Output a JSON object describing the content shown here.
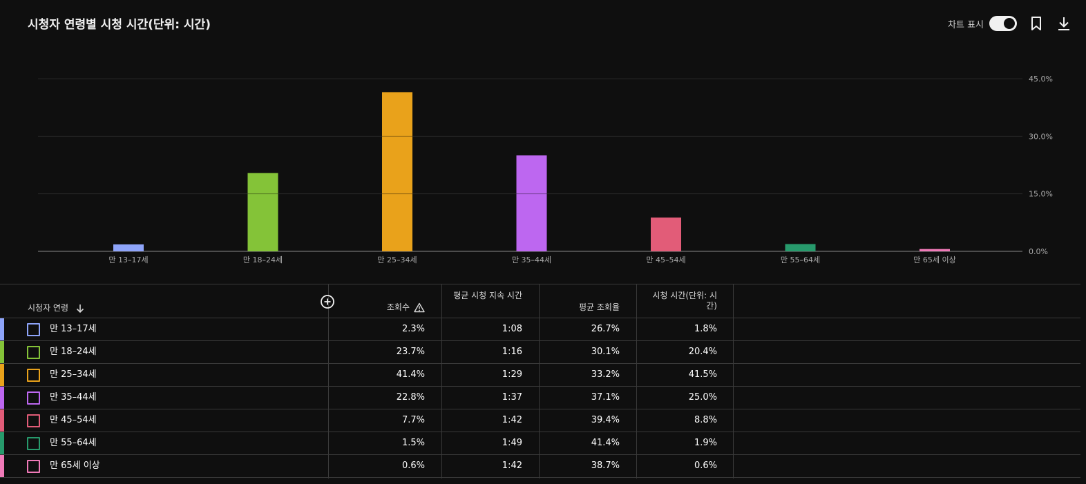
{
  "header": {
    "title": "시청자 연령별 시청 시간(단위: 시간)",
    "toggle_label": "차트 표시",
    "toggle_on": true
  },
  "chart_data": {
    "type": "bar",
    "categories": [
      "만 13–17세",
      "만 18–24세",
      "만 25–34세",
      "만 35–44세",
      "만 45–54세",
      "만 55–64세",
      "만 65세 이상"
    ],
    "values": [
      1.8,
      20.4,
      41.5,
      25.0,
      8.8,
      1.9,
      0.6
    ],
    "colors": [
      "#8ea4f9",
      "#84c338",
      "#e9a21b",
      "#bd67f0",
      "#e25c78",
      "#279a6c",
      "#f07ab8"
    ],
    "yticks": [
      "0.0%",
      "15.0%",
      "30.0%",
      "45.0%"
    ],
    "ylim": [
      0,
      45
    ],
    "grid": true
  },
  "table": {
    "columns": {
      "dimension": "시청자 연령",
      "views": "조회수",
      "avg_duration": "평균 시청 지속 시간",
      "avg_percent": "평균 조회율",
      "watch_time": "시청 시간(단위: 시간)"
    },
    "rows": [
      {
        "label": "만 13–17세",
        "views": "2.3%",
        "avg_duration": "1:08",
        "avg_percent": "26.7%",
        "watch_time": "1.8%"
      },
      {
        "label": "만 18–24세",
        "views": "23.7%",
        "avg_duration": "1:16",
        "avg_percent": "30.1%",
        "watch_time": "20.4%"
      },
      {
        "label": "만 25–34세",
        "views": "41.4%",
        "avg_duration": "1:29",
        "avg_percent": "33.2%",
        "watch_time": "41.5%"
      },
      {
        "label": "만 35–44세",
        "views": "22.8%",
        "avg_duration": "1:37",
        "avg_percent": "37.1%",
        "watch_time": "25.0%"
      },
      {
        "label": "만 45–54세",
        "views": "7.7%",
        "avg_duration": "1:42",
        "avg_percent": "39.4%",
        "watch_time": "8.8%"
      },
      {
        "label": "만 55–64세",
        "views": "1.5%",
        "avg_duration": "1:49",
        "avg_percent": "41.4%",
        "watch_time": "1.9%"
      },
      {
        "label": "만 65세 이상",
        "views": "0.6%",
        "avg_duration": "1:42",
        "avg_percent": "38.7%",
        "watch_time": "0.6%"
      }
    ]
  },
  "icons": {
    "bookmark": "bookmark-icon",
    "download": "download-icon",
    "sort": "arrow-down-icon",
    "add_metric": "add-circle-icon",
    "warning": "warning-icon"
  }
}
